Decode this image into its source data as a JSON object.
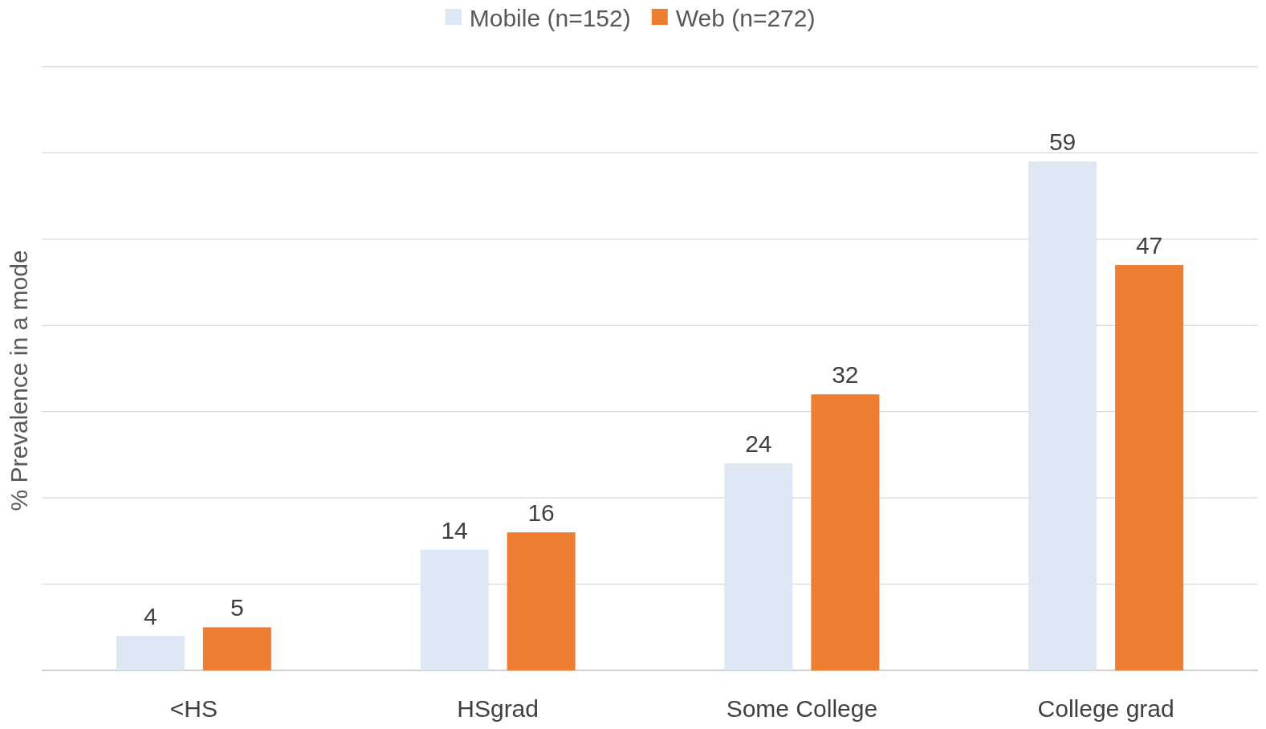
{
  "chart_data": {
    "type": "bar",
    "ylabel": "% Prevalence in a mode",
    "categories": [
      "<HS",
      "HSgrad",
      "Some College",
      "College grad"
    ],
    "series": [
      {
        "name": "Mobile (n=152)",
        "color": "#dde8f4",
        "values": [
          4,
          14,
          24,
          59
        ]
      },
      {
        "name": "Web (n=272)",
        "color": "#ed7d31",
        "values": [
          5,
          16,
          32,
          47
        ]
      }
    ],
    "ylim": [
      0,
      70
    ],
    "yticks": [
      {
        "value": 0,
        "label": null
      },
      {
        "value": 10,
        "label": null
      },
      {
        "value": 20,
        "label": null
      },
      {
        "value": 30,
        "label": null
      },
      {
        "value": 40,
        "label": null
      },
      {
        "value": 50,
        "label": null
      },
      {
        "value": 60,
        "label": null
      },
      {
        "value": 70,
        "label": null
      }
    ],
    "tick_labels": "x",
    "grid": "y",
    "legend": "top",
    "data_labels": true
  }
}
